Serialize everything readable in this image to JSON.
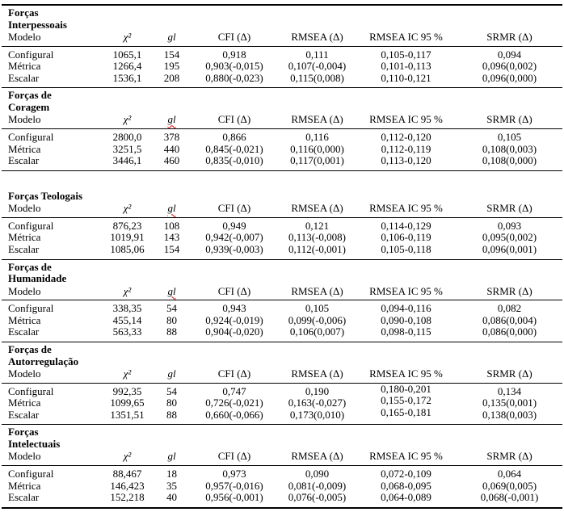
{
  "table": {
    "columns": [
      "Modelo",
      "χ²",
      "gl",
      "CFI (Δ)",
      "RMSEA (Δ)",
      "RMSEA IC 95 %",
      "SRMR (Δ)"
    ],
    "sections": [
      {
        "title": "Forças\nInterpessoais",
        "rows": [
          [
            "Configural",
            "1065,1",
            "154",
            "0,918",
            "0,111",
            "0,105-0,117",
            "0,094"
          ],
          [
            "Métrica",
            "1266,4",
            "195",
            "0,903(-0,015)",
            "0,107(-0,004)",
            "0,101-0,113",
            "0,096(0,002)"
          ],
          [
            "Escalar",
            "1536,1",
            "208",
            "0,880(-0,023)",
            "0,115(0,008)",
            "0,110-0,121",
            "0,096(0,000)"
          ]
        ]
      },
      {
        "title": "Forças de\nCoragem",
        "rows": [
          [
            "Configural",
            "2800,0",
            "378",
            "0,866",
            "0,116",
            "0,112-0,120",
            "0,105"
          ],
          [
            "Métrica",
            "3251,5",
            "440",
            "0,845(-0,021)",
            "0,116(0,000)",
            "0,112-0,119",
            "0,108(0,003)"
          ],
          [
            "Escalar",
            "3446,1",
            "460",
            "0,835(-0,010)",
            "0,117(0,001)",
            "0,113-0,120",
            "0,108(0,000)"
          ]
        ]
      },
      {
        "title": "Forças Teologais",
        "rows": [
          [
            "Configural",
            "876,23",
            "108",
            "0,949",
            "0,121",
            "0,114-0,129",
            "0,093"
          ],
          [
            "Métrica",
            "1019,91",
            "143",
            "0,942(-0,007)",
            "0,113(-0,008)",
            "0,106-0,119",
            "0,095(0,002)"
          ],
          [
            "Escalar",
            "1085,06",
            "154",
            "0,939(-0,003)",
            "0,112(-0,001)",
            "0,105-0,118",
            "0,096(0,001)"
          ]
        ]
      },
      {
        "title": "Forças de\nHumanidade",
        "rows": [
          [
            "Configural",
            "338,35",
            "54",
            "0,943",
            "0,105",
            "0,094-0,116",
            "0,082"
          ],
          [
            "Métrica",
            "455,14",
            "80",
            "0,924(-0,019)",
            "0,099(-0,006)",
            "0,090-0,108",
            "0,086(0,004)"
          ],
          [
            "Escalar",
            "563,33",
            "88",
            "0,904(-0,020)",
            "0,106(0,007)",
            "0,098-0,115",
            "0,086(0,000)"
          ]
        ]
      },
      {
        "title": "Forças de\nAutorregulação",
        "rows": [
          [
            "Configural",
            "992,35",
            "54",
            "0,747",
            "0,190",
            "0,180-0,201",
            "0,134"
          ],
          [
            "Métrica",
            "1099,65",
            "80",
            "0,726(-0,021)",
            "0,163(-0,027)",
            "0,155-0,172",
            "0,135(0,001)"
          ],
          [
            "Escalar",
            "1351,51",
            "88",
            "0,660(-0,066)",
            "0,173(0,010)",
            "0,165-0,181",
            "0,138(0,003)"
          ]
        ]
      },
      {
        "title": "Forças\nIntelectuais",
        "rows": [
          [
            "Configural",
            "88,467",
            "18",
            "0,973",
            "0,090",
            "0,072-0,109",
            "0,064"
          ],
          [
            "Métrica",
            "146,423",
            "35",
            "0,957(-0,016)",
            "0,081(-0,009)",
            "0,068-0,095",
            "0,069(0,005)"
          ],
          [
            "Escalar",
            "152,218",
            "40",
            "0,956(-0,001)",
            "0,076(-0,005)",
            "0,064-0,089",
            "0,068(-0,001)"
          ]
        ]
      }
    ]
  }
}
